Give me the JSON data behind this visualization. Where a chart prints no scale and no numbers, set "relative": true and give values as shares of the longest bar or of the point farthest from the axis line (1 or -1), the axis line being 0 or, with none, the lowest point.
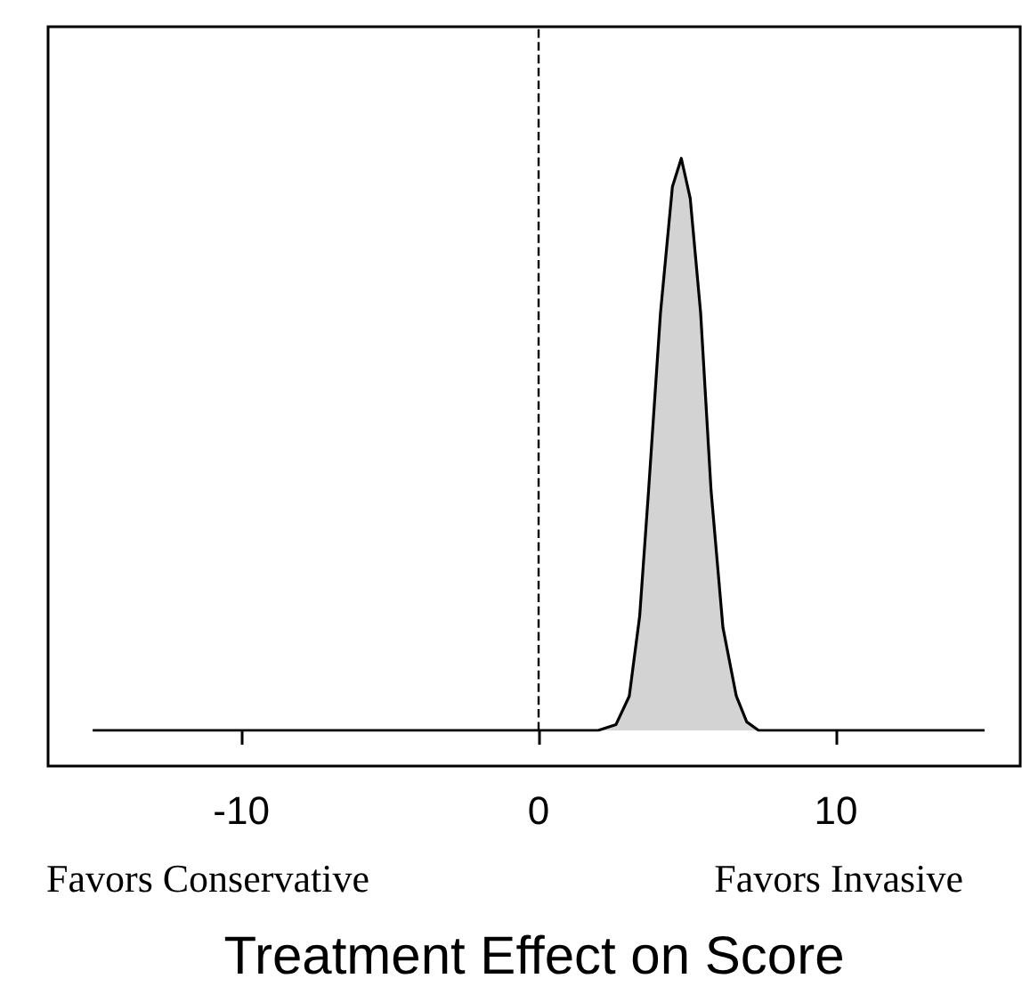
{
  "chart_data": {
    "type": "area",
    "relative": true,
    "xlabel": "Treatment Effect on Score",
    "x": [
      -15,
      2.0,
      2.6,
      3.05,
      3.4,
      3.7,
      4.1,
      4.5,
      4.8,
      5.1,
      5.45,
      5.8,
      6.2,
      6.65,
      7.0,
      7.4,
      15
    ],
    "series": [
      {
        "color": "#d3d3d3",
        "values": [
          0,
          0,
          0.01,
          0.06,
          0.2,
          0.42,
          0.73,
          0.95,
          1,
          0.93,
          0.73,
          0.42,
          0.18,
          0.06,
          0.015,
          0,
          0
        ]
      }
    ],
    "xlim": [
      -16.5,
      16.2
    ],
    "xticks": [
      -10,
      0,
      10
    ],
    "ref_lines": [
      {
        "axis": "x",
        "value": 0,
        "color": "#000000",
        "line_style": "dashed"
      }
    ],
    "annotations": [
      "Favors Conservative",
      "Favors Invasive"
    ],
    "grid": false,
    "marker": "none",
    "line_style": "solid"
  }
}
